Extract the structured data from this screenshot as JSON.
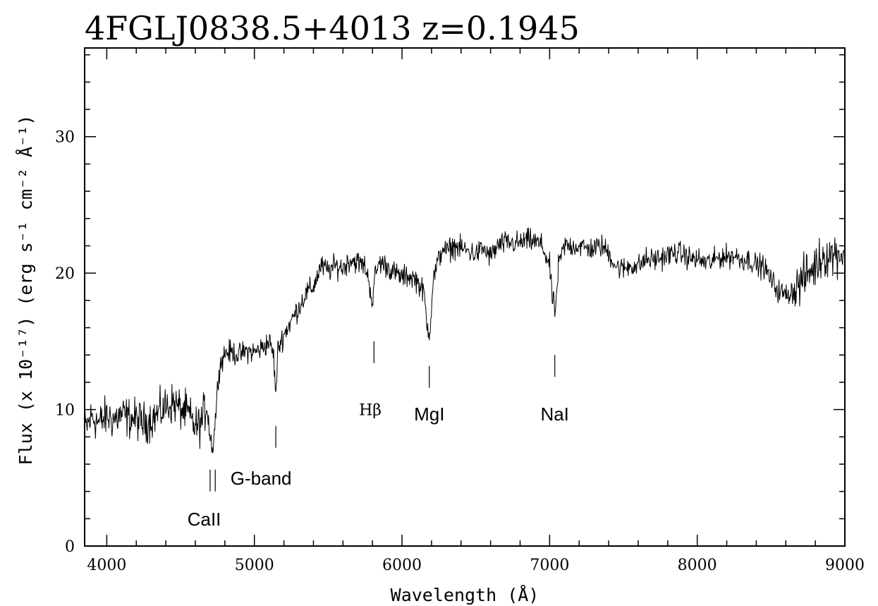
{
  "chart_data": {
    "type": "line",
    "title": "4FGLJ0838.5+4013 z=0.1945",
    "xlabel": "Wavelength (Å)",
    "ylabel": "Flux (x 10⁻¹⁷) (erg s⁻¹ cm⁻² Å⁻¹)",
    "xlim": [
      3850,
      9000
    ],
    "ylim": [
      0,
      36.5
    ],
    "x_ticks": [
      4000,
      5000,
      6000,
      7000,
      8000,
      9000
    ],
    "y_ticks": [
      0,
      10,
      20,
      30
    ],
    "grid": false,
    "legend": "none",
    "line_color": "#000000",
    "spectrum": {
      "x": [
        3850,
        3900,
        3950,
        4000,
        4050,
        4100,
        4150,
        4200,
        4250,
        4300,
        4350,
        4400,
        4450,
        4500,
        4550,
        4600,
        4640,
        4680,
        4700,
        4720,
        4740,
        4760,
        4800,
        4850,
        4900,
        4950,
        5000,
        5050,
        5100,
        5130,
        5145,
        5160,
        5200,
        5250,
        5300,
        5350,
        5400,
        5450,
        5500,
        5550,
        5600,
        5650,
        5700,
        5750,
        5780,
        5800,
        5820,
        5850,
        5900,
        5950,
        6000,
        6050,
        6100,
        6150,
        6170,
        6190,
        6210,
        6250,
        6280,
        6300,
        6350,
        6400,
        6450,
        6500,
        6550,
        6600,
        6650,
        6700,
        6750,
        6800,
        6850,
        6900,
        6950,
        7000,
        7020,
        7040,
        7060,
        7100,
        7150,
        7200,
        7250,
        7300,
        7350,
        7400,
        7450,
        7500,
        7550,
        7600,
        7650,
        7700,
        7750,
        7800,
        7850,
        7900,
        7950,
        8000,
        8050,
        8100,
        8150,
        8200,
        8250,
        8300,
        8350,
        8400,
        8450,
        8500,
        8550,
        8600,
        8650,
        8700,
        8750,
        8800,
        8850,
        8900,
        8950,
        9000
      ],
      "y": [
        8.5,
        9.5,
        9.0,
        9.5,
        9.3,
        9.6,
        9.4,
        9.3,
        9.0,
        9.3,
        9.7,
        10.2,
        10.5,
        10.0,
        9.7,
        8.7,
        9.0,
        10.5,
        8.0,
        7.2,
        10.0,
        13.0,
        14.2,
        14.2,
        14.0,
        14.3,
        14.2,
        14.5,
        15.0,
        14.0,
        11.0,
        14.5,
        15.5,
        16.5,
        17.5,
        18.5,
        19.0,
        20.5,
        20.2,
        20.5,
        20.4,
        21.0,
        20.8,
        20.5,
        19.2,
        17.8,
        20.0,
        20.8,
        20.5,
        20.0,
        19.7,
        19.8,
        19.5,
        18.5,
        16.0,
        15.8,
        19.5,
        21.0,
        22.0,
        21.5,
        22.0,
        21.8,
        21.6,
        21.4,
        21.8,
        21.2,
        22.0,
        22.2,
        22.2,
        22.2,
        22.4,
        22.3,
        22.0,
        20.5,
        18.0,
        17.2,
        20.5,
        22.0,
        22.0,
        22.0,
        21.8,
        21.8,
        22.0,
        21.5,
        20.5,
        20.3,
        20.6,
        20.5,
        21.0,
        21.0,
        21.1,
        21.3,
        21.5,
        21.4,
        21.1,
        21.0,
        20.8,
        20.8,
        21.2,
        21.2,
        21.3,
        21.0,
        21.0,
        20.6,
        20.5,
        19.5,
        18.7,
        18.4,
        18.7,
        19.3,
        20.0,
        20.5,
        21.3,
        21.3,
        21.5,
        21.4
      ]
    },
    "line_markers": [
      {
        "label": "CaII",
        "markers": [
          {
            "x": 4700,
            "y_from": 4.0,
            "y_to": 5.6
          },
          {
            "x": 4735,
            "y_from": 4.0,
            "y_to": 5.6
          }
        ],
        "label_x": 4660,
        "label_y": 1.5
      },
      {
        "label": "G-band",
        "markers": [
          {
            "x": 5145,
            "y_from": 7.2,
            "y_to": 8.8
          }
        ],
        "label_x": 5045,
        "label_y": 4.5
      },
      {
        "label": "Hβ",
        "markers": [
          {
            "x": 5810,
            "y_from": 13.4,
            "y_to": 15.0
          }
        ],
        "label_x": 5785,
        "label_y": 9.6
      },
      {
        "label": "MgI",
        "markers": [
          {
            "x": 6185,
            "y_from": 11.6,
            "y_to": 13.2
          }
        ],
        "label_x": 6185,
        "label_y": 9.2
      },
      {
        "label": "NaI",
        "markers": [
          {
            "x": 7035,
            "y_from": 12.4,
            "y_to": 14.0
          }
        ],
        "label_x": 7035,
        "label_y": 9.2
      }
    ]
  }
}
